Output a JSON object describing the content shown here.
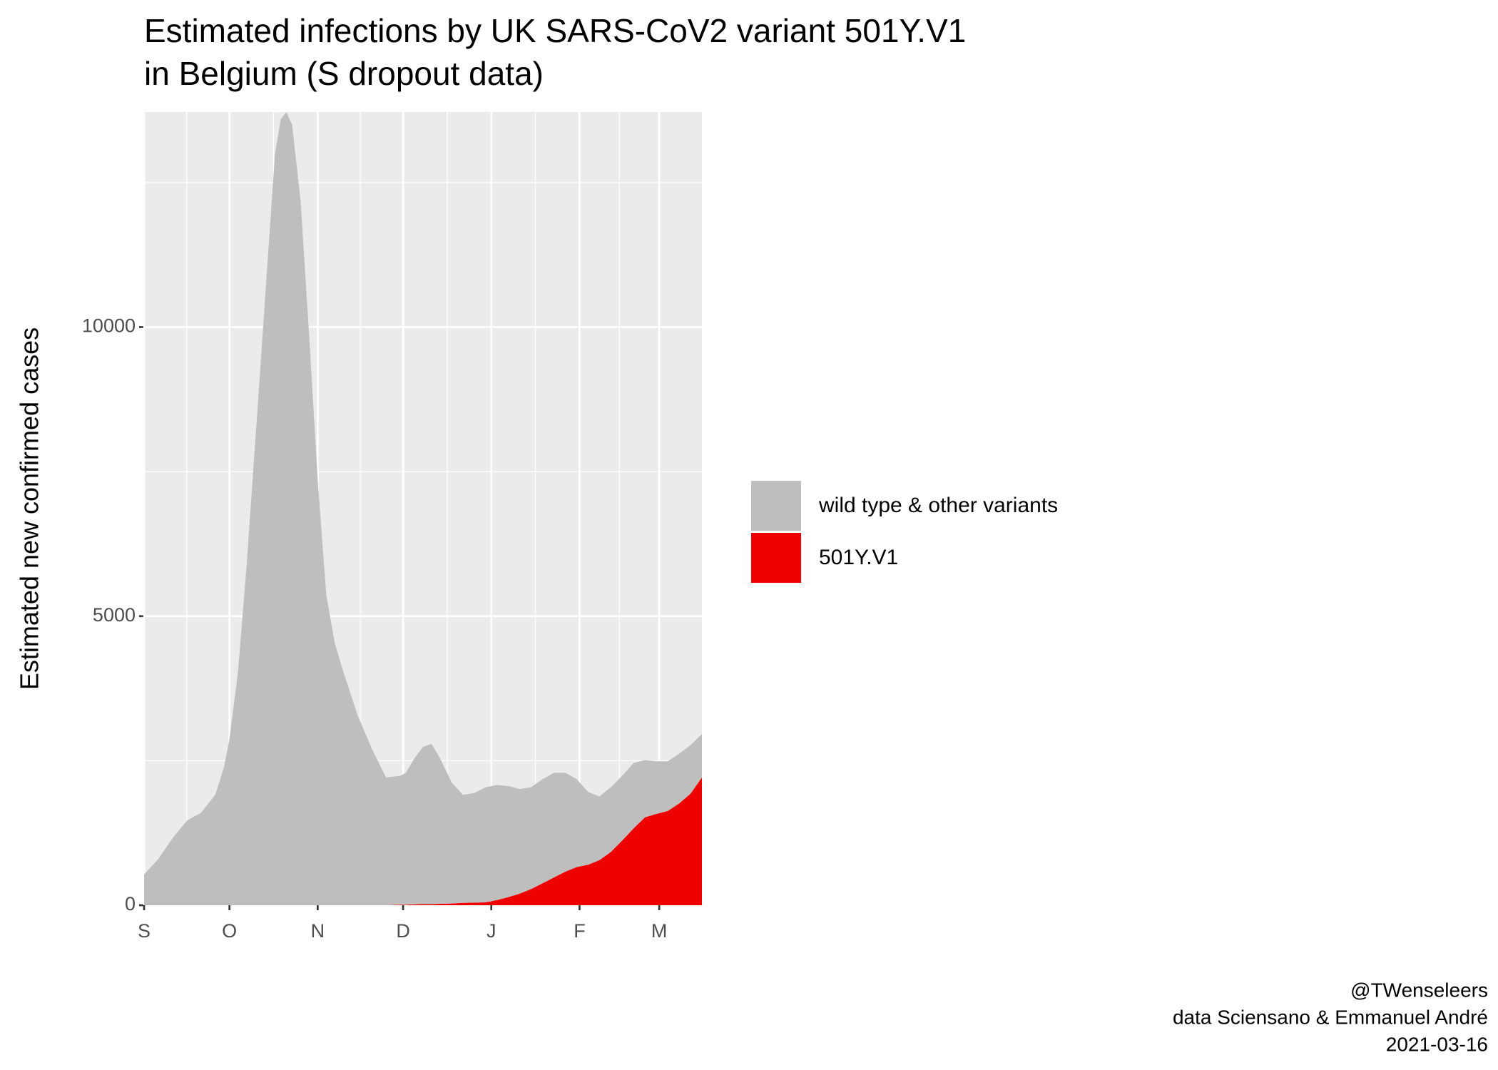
{
  "chart_data": {
    "type": "stacked_area",
    "title": [
      "Estimated infections by UK SARS-CoV2 variant 501Y.V1",
      "in Belgium (S dropout data)"
    ],
    "ylabel": "Estimated new confirmed cases",
    "caption": [
      "@TWenseleers",
      "data Sciensano & Emmanuel André",
      "2021-03-16"
    ],
    "x": [
      0,
      5,
      10,
      15,
      20,
      25,
      28,
      30,
      33,
      36,
      40,
      43,
      46,
      48,
      50,
      52,
      55,
      58,
      61,
      64,
      67,
      70,
      75,
      80,
      85,
      90,
      92,
      95,
      98,
      101,
      104,
      108,
      112,
      116,
      120,
      124,
      128,
      132,
      136,
      140,
      144,
      148,
      152,
      156,
      160,
      164,
      168,
      172,
      176,
      180,
      184,
      188,
      192,
      196
    ],
    "xlim": [
      0,
      196
    ],
    "xticks": [
      {
        "value": 0,
        "label": "S"
      },
      {
        "value": 30,
        "label": "O"
      },
      {
        "value": 61,
        "label": "N"
      },
      {
        "value": 91,
        "label": "D"
      },
      {
        "value": 122,
        "label": "J"
      },
      {
        "value": 153,
        "label": "F"
      },
      {
        "value": 181,
        "label": "M"
      }
    ],
    "ylim": [
      0,
      13720
    ],
    "yticks": [
      0,
      5000,
      10000
    ],
    "grid": true,
    "legend": "right",
    "series": [
      {
        "name": "501Y.V1",
        "color": "#ee0000",
        "values": [
          0,
          0,
          0,
          0,
          0,
          0,
          0,
          0,
          0,
          0,
          0,
          0,
          0,
          0,
          0,
          0,
          0,
          0,
          0,
          0,
          0,
          0,
          0,
          0,
          0,
          10,
          10,
          15,
          20,
          20,
          25,
          30,
          40,
          45,
          50,
          90,
          140,
          200,
          280,
          380,
          480,
          580,
          660,
          700,
          780,
          920,
          1120,
          1330,
          1520,
          1580,
          1630,
          1760,
          1930,
          2210
        ]
      },
      {
        "name": "wild type & other variants",
        "color": "#bebebe",
        "values": [
          530,
          800,
          1160,
          1460,
          1600,
          1910,
          2375,
          2870,
          4040,
          5860,
          8690,
          10850,
          13000,
          13590,
          13720,
          13500,
          12180,
          9850,
          7360,
          5370,
          4530,
          4040,
          3290,
          2710,
          2210,
          2230,
          2280,
          2525,
          2720,
          2770,
          2515,
          2100,
          1870,
          1895,
          1990,
          1990,
          1920,
          1810,
          1760,
          1800,
          1810,
          1710,
          1520,
          1260,
          1100,
          1120,
          1120,
          1130,
          990,
          910,
          860,
          860,
          840,
          750
        ]
      }
    ]
  }
}
